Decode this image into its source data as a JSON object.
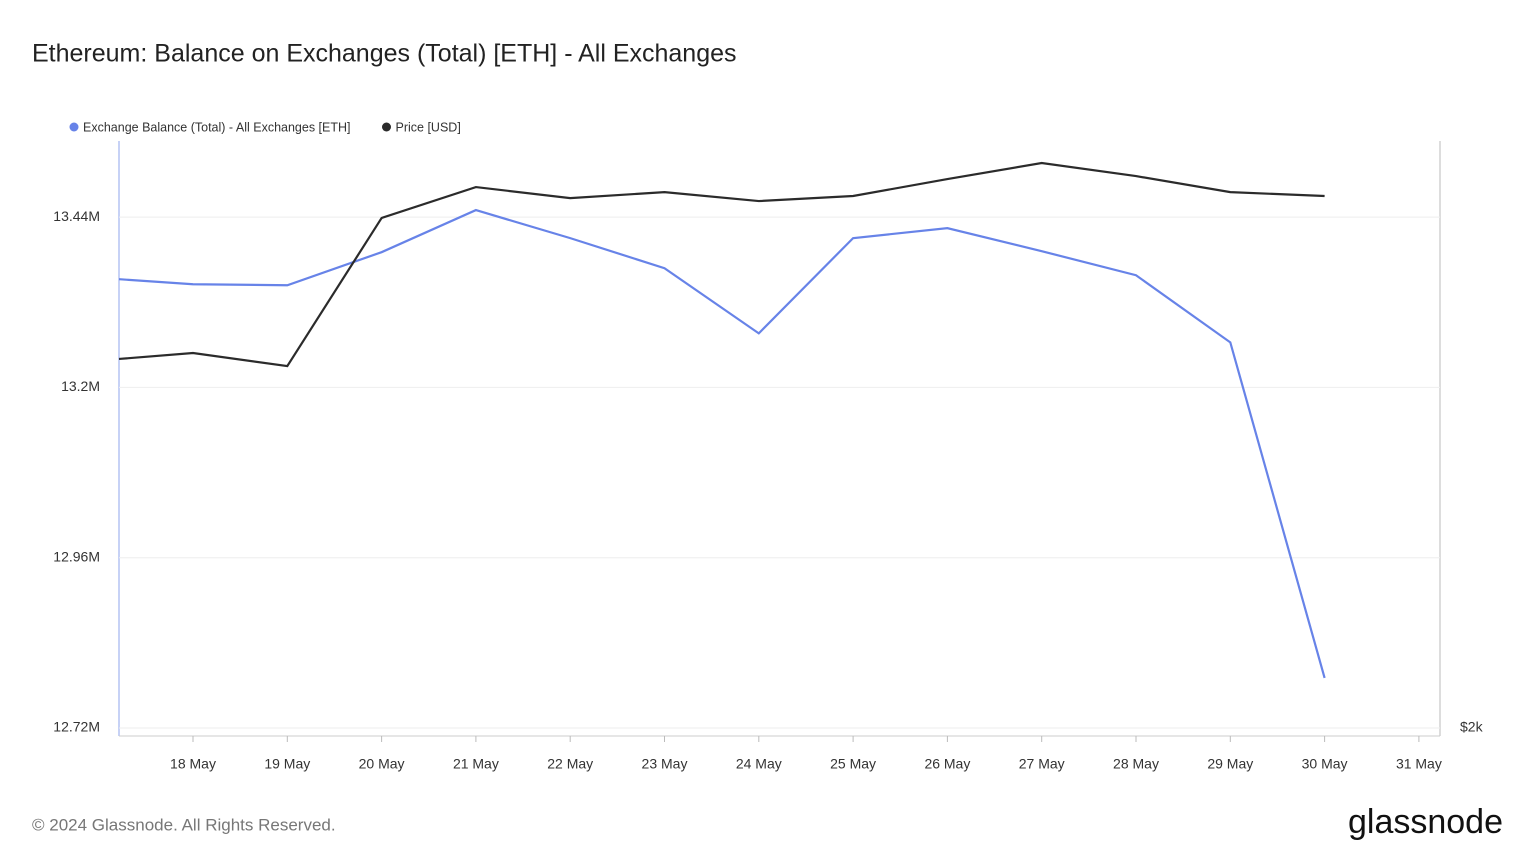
{
  "chart_data": {
    "type": "line",
    "title": "Ethereum: Balance on Exchanges (Total) [ETH] - All Exchanges",
    "x": [
      null,
      "18 May",
      "19 May",
      "20 May",
      "21 May",
      "22 May",
      "23 May",
      "24 May",
      "25 May",
      "26 May",
      "27 May",
      "28 May",
      "29 May",
      "30 May"
    ],
    "xticks": [
      "18 May",
      "19 May",
      "20 May",
      "21 May",
      "22 May",
      "23 May",
      "24 May",
      "25 May",
      "26 May",
      "27 May",
      "28 May",
      "29 May",
      "30 May",
      "31 May"
    ],
    "series": [
      {
        "name": "Exchange Balance (Total) - All Exchanges [ETH]",
        "color": "#6783e8",
        "values": [
          13352500,
          13345400,
          13344000,
          13390600,
          13449900,
          13410400,
          13368000,
          13276200,
          13410400,
          13424500,
          13392000,
          13358100,
          13263500,
          12790600
        ]
      },
      {
        "name": "Price [USD]",
        "color": "#2b2b2b",
        "axis": "y2",
        "values": [
          3241,
          3261,
          3217,
          3715,
          3819,
          3782,
          3802,
          3772,
          3789,
          3846,
          3900,
          3856,
          3802,
          3789
        ]
      }
    ],
    "ylim": [
      12708700,
      13547300
    ],
    "yticks": [
      {
        "value": 12720000,
        "label": "12.72M"
      },
      {
        "value": 12960000,
        "label": "12.96M"
      },
      {
        "value": 13200000,
        "label": "13.2M"
      },
      {
        "value": 13440000,
        "label": "13.44M"
      }
    ],
    "y2lim": [
      1973,
      3974
    ],
    "y2ticks": [
      {
        "value": 2000,
        "label": "$2k"
      }
    ],
    "grid": true
  },
  "footer": {
    "copyright": "© 2024 Glassnode. All Rights Reserved.",
    "logo": "glassnode"
  }
}
